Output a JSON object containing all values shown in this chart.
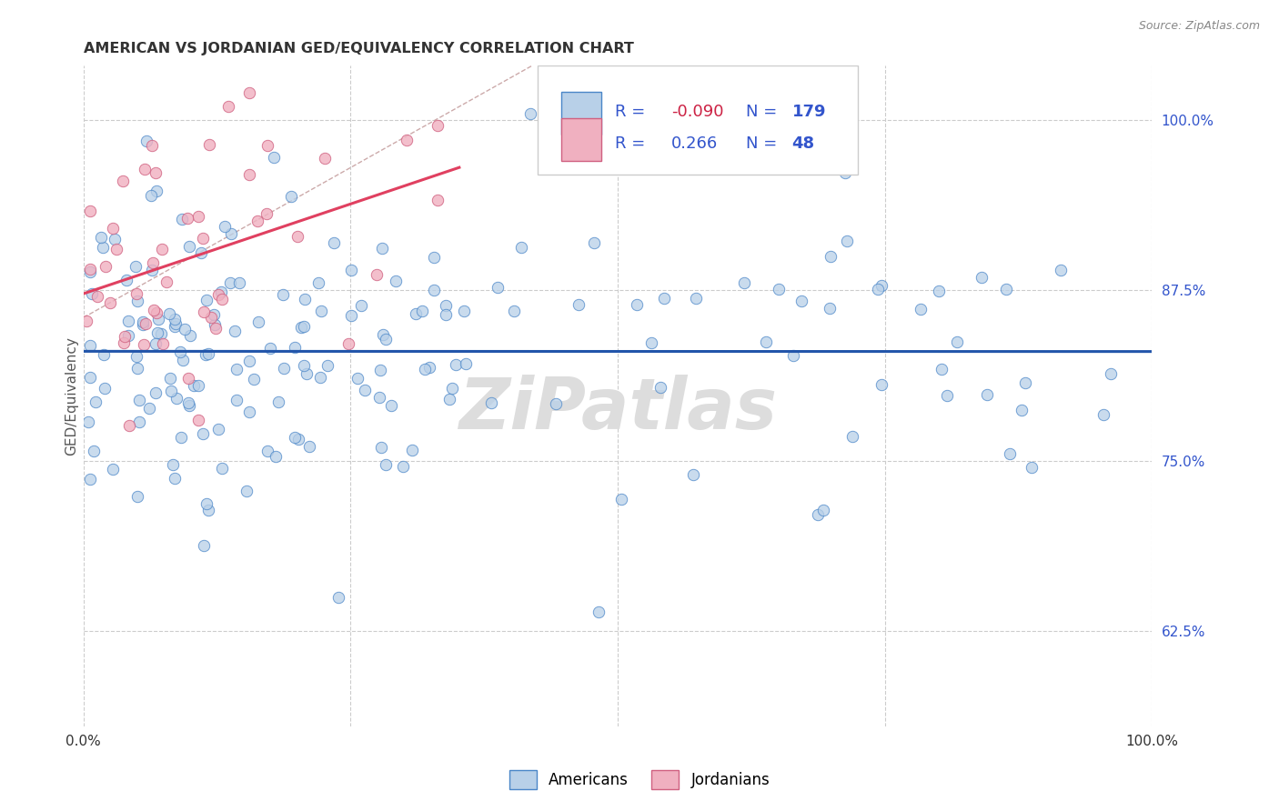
{
  "title": "AMERICAN VS JORDANIAN GED/EQUIVALENCY CORRELATION CHART",
  "source": "Source: ZipAtlas.com",
  "ylabel": "GED/Equivalency",
  "xlim": [
    0.0,
    1.0
  ],
  "ylim": [
    0.555,
    1.04
  ],
  "yticks": [
    0.625,
    0.75,
    0.875,
    1.0
  ],
  "ytick_labels": [
    "62.5%",
    "75.0%",
    "87.5%",
    "100.0%"
  ],
  "xtick_labels": [
    "0.0%",
    "100.0%"
  ],
  "legend_R_american": "-0.090",
  "legend_N_american": "179",
  "legend_R_jordanian": "0.266",
  "legend_N_jordanian": "48",
  "american_fill": "#b8d0e8",
  "american_edge": "#4a86c8",
  "jordanian_fill": "#f0b0c0",
  "jordanian_edge": "#d06080",
  "american_line_color": "#2255aa",
  "jordanian_line_color": "#e04060",
  "legend_text_color": "#3355cc",
  "legend_R_neg_color": "#cc2244",
  "watermark": "ZiPatlas",
  "background_color": "#ffffff",
  "grid_color": "#cccccc",
  "source_color": "#888888",
  "title_color": "#333333"
}
